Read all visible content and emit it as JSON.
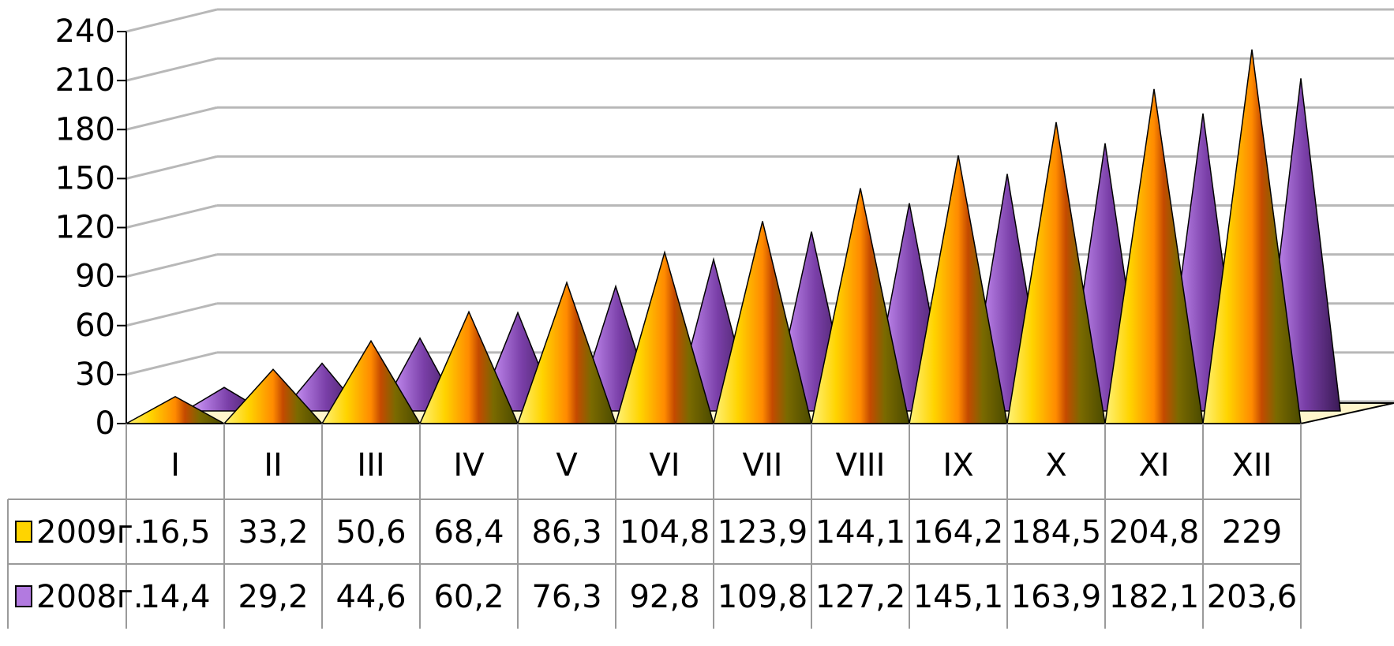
{
  "chart_data": {
    "type": "bar",
    "subtype": "3d-cone",
    "categories": [
      "I",
      "II",
      "III",
      "IV",
      "V",
      "VI",
      "VII",
      "VIII",
      "IX",
      "X",
      "XI",
      "XII"
    ],
    "series": [
      {
        "name": "2009г.",
        "values": [
          16.5,
          33.2,
          50.6,
          68.4,
          86.3,
          104.8,
          123.9,
          144.1,
          164.2,
          184.5,
          204.8,
          229
        ],
        "color": "#e8a000"
      },
      {
        "name": "2008г.",
        "values": [
          14.4,
          29.2,
          44.6,
          60.2,
          76.3,
          92.8,
          109.8,
          127.2,
          145.1,
          163.9,
          182.1,
          203.6
        ],
        "color": "#8a4fb0"
      }
    ],
    "table_values": {
      "2009г.": [
        "16,5",
        "33,2",
        "50,6",
        "68,4",
        "86,3",
        "104,8",
        "123,9",
        "144,1",
        "164,2",
        "184,5",
        "204,8",
        "229"
      ],
      "2008г.": [
        "14,4",
        "29,2",
        "44,6",
        "60,2",
        "76,3",
        "92,8",
        "109,8",
        "127,2",
        "145,1",
        "163,9",
        "182,1",
        "203,6"
      ]
    },
    "y_ticks": [
      "0",
      "30",
      "60",
      "90",
      "120",
      "150",
      "180",
      "210",
      "240"
    ],
    "ylim": [
      0,
      240
    ],
    "grid": true,
    "legend": "data-table"
  }
}
